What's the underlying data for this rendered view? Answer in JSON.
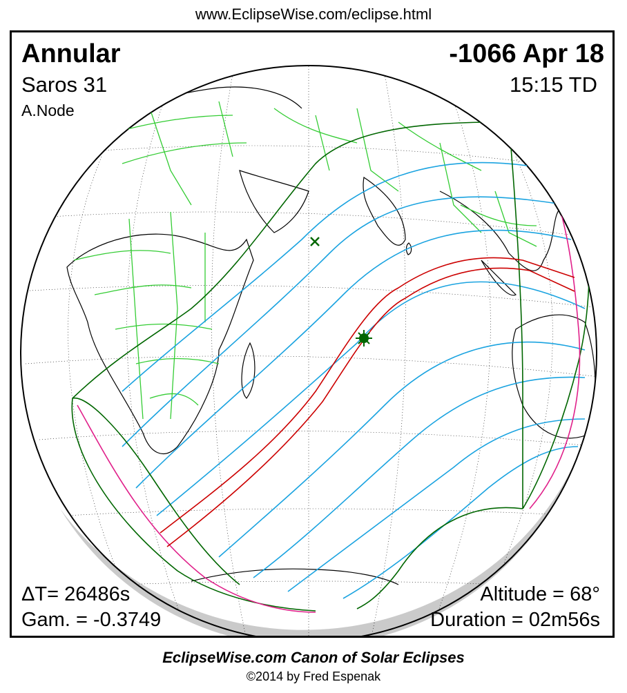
{
  "header": {
    "url": "www.EclipseWise.com/eclipse.html"
  },
  "eclipse": {
    "type": "Annular",
    "saros": "Saros  31",
    "node": "A.Node",
    "date": "-1066 Apr 18",
    "time": "15:15 TD",
    "delta_t": "ΔT=  26486s",
    "gamma": "Gam. = -0.3749",
    "altitude": "Altitude = 68°",
    "duration": "Duration = 02m56s"
  },
  "footer": {
    "canon": "EclipseWise.com Canon of Solar Eclipses",
    "copyright": "©2014 by Fred Espenak"
  },
  "map_legend": {
    "path_color": "#cc0000",
    "penumbra_limit_color": "#006600",
    "partial_curve_color": "#1aa3e0",
    "rise_set_color": "#e0208a",
    "border_color": "#33cc33",
    "coast_color": "#000000",
    "greatest_eclipse_marker": "star-marker",
    "subsolar_marker": "x-marker"
  }
}
